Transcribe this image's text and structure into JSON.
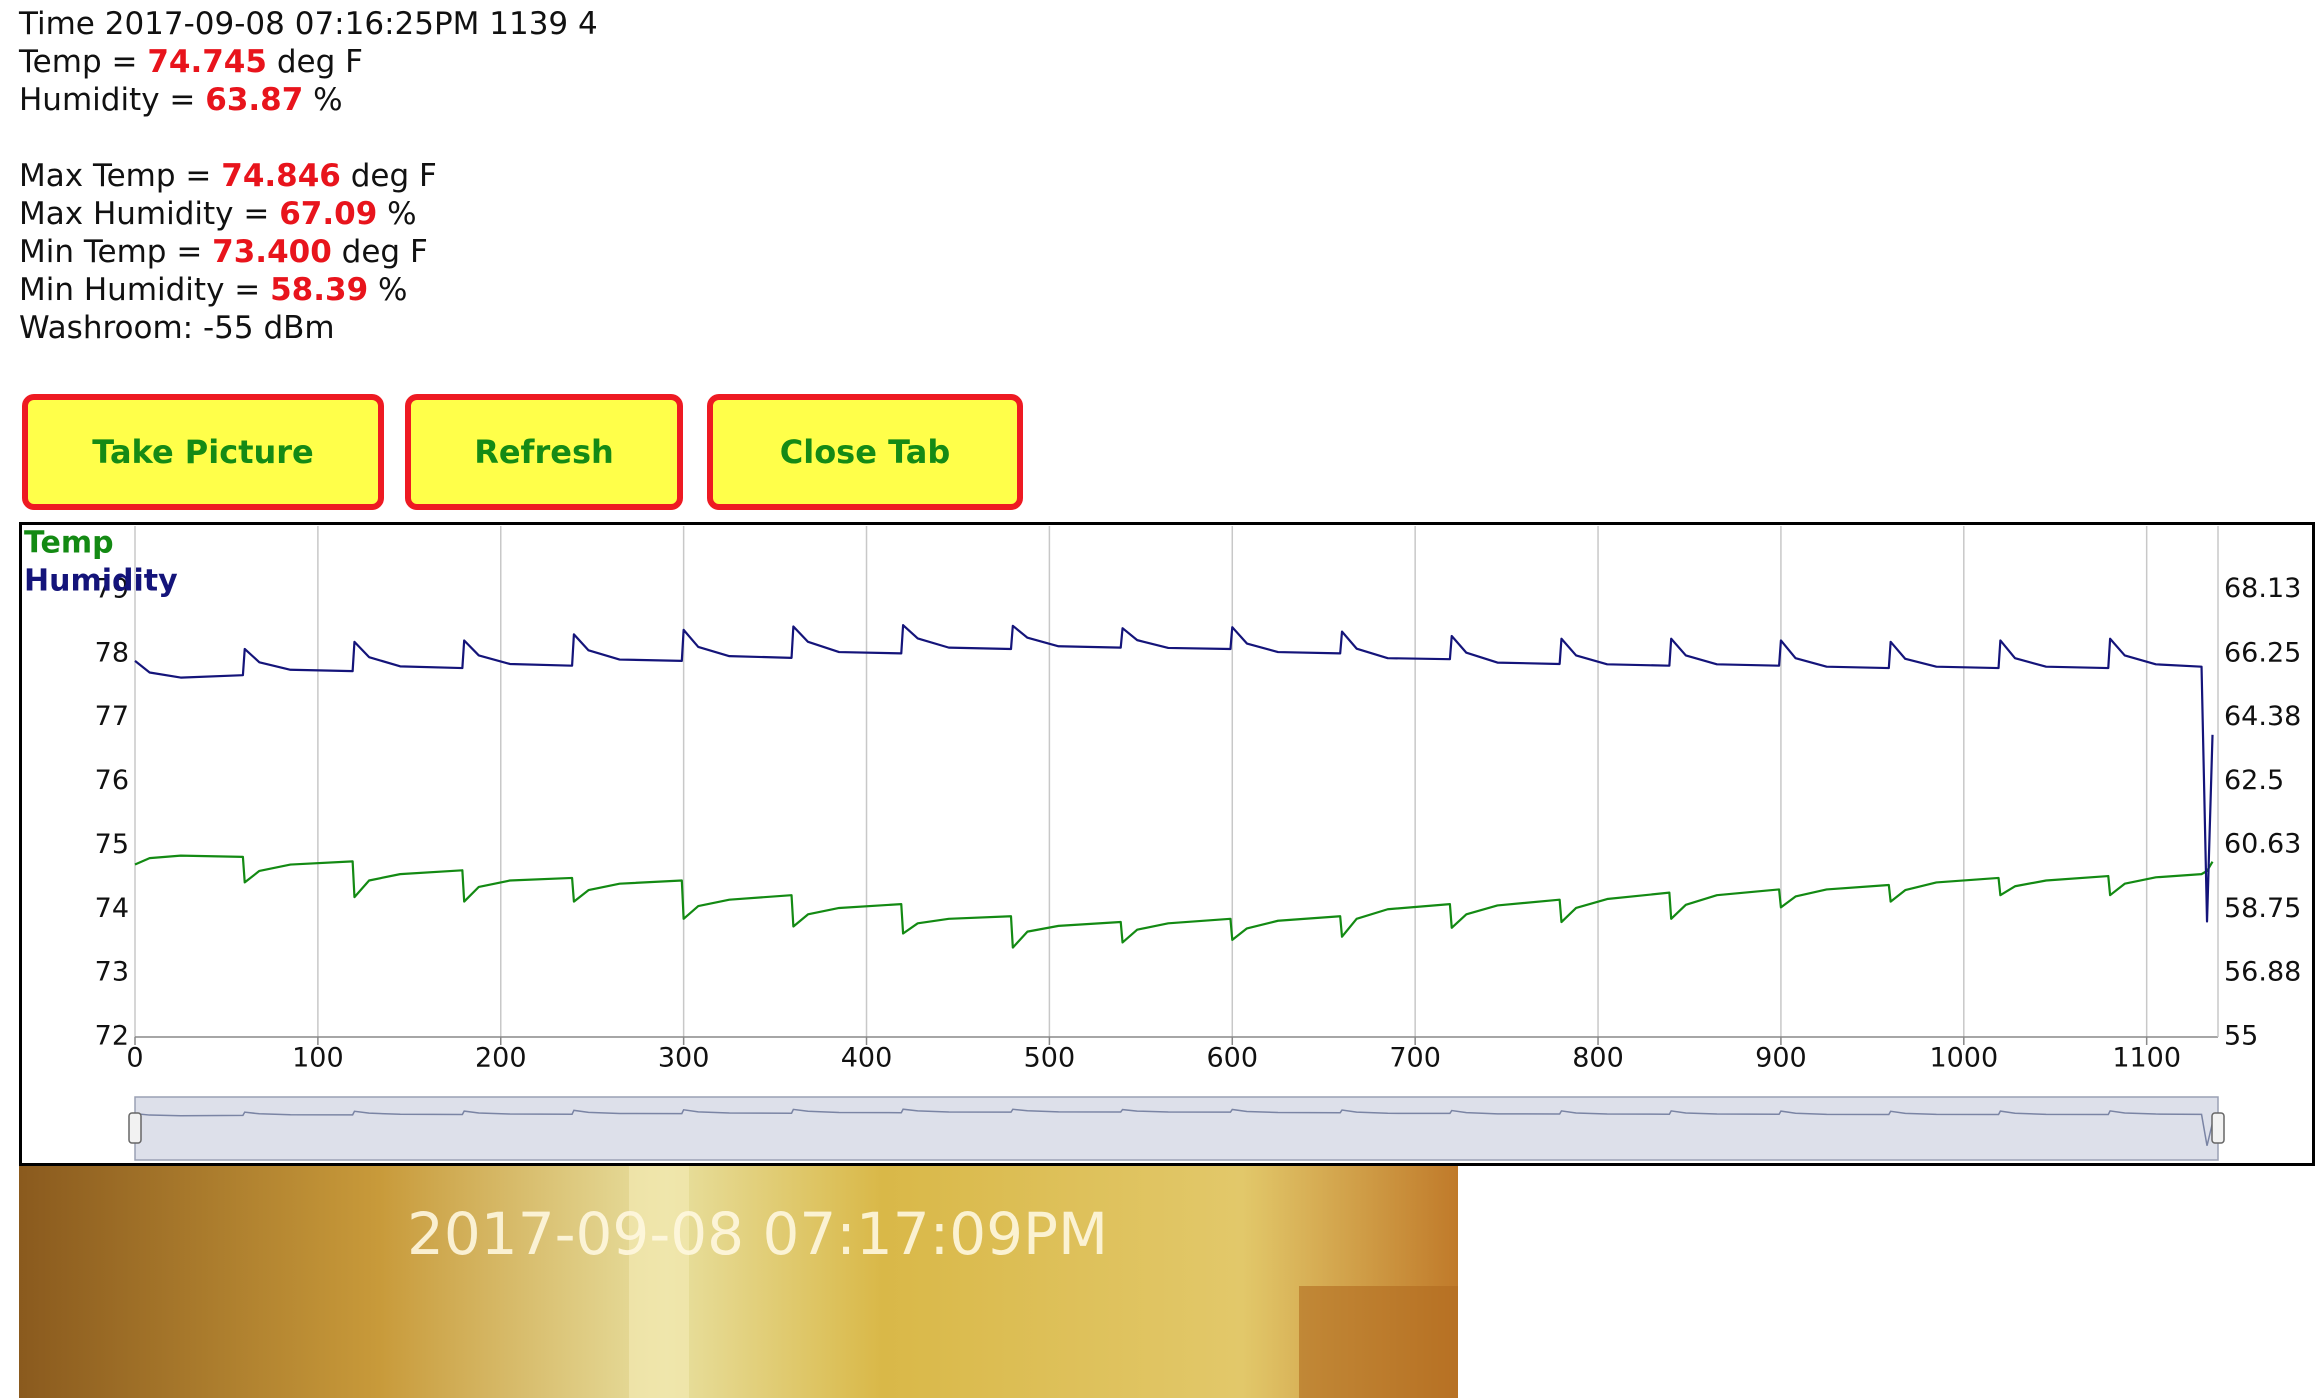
{
  "header": {
    "time": "Time 2017-09-08 07:16:25PM 1139 4",
    "current": [
      {
        "label": "Temp =",
        "value": "74.745",
        "unit": "deg F"
      },
      {
        "label": "Humidity =",
        "value": "63.87",
        "unit": "%"
      }
    ],
    "extremes": [
      {
        "label": "Max Temp =",
        "value": "74.846",
        "unit": "deg F"
      },
      {
        "label": "Max Humidity =",
        "value": "67.09",
        "unit": "%"
      },
      {
        "label": "Min Temp =",
        "value": "73.400",
        "unit": "deg F"
      },
      {
        "label": "Min Humidity =",
        "value": "58.39",
        "unit": "%"
      }
    ],
    "signal": "Washroom: -55 dBm"
  },
  "buttons": [
    "Take Picture",
    "Refresh",
    "Close Tab"
  ],
  "chart_data": {
    "type": "line",
    "legend": "top-left",
    "grid": "x",
    "x": [
      0,
      8,
      25,
      59,
      60,
      68,
      85,
      119,
      120,
      128,
      145,
      179,
      180,
      188,
      205,
      239,
      240,
      248,
      265,
      299,
      300,
      308,
      325,
      359,
      360,
      368,
      385,
      419,
      420,
      428,
      445,
      479,
      480,
      488,
      505,
      539,
      540,
      548,
      565,
      599,
      600,
      608,
      625,
      659,
      660,
      668,
      685,
      719,
      720,
      728,
      745,
      779,
      780,
      788,
      805,
      839,
      840,
      848,
      865,
      899,
      900,
      908,
      925,
      959,
      960,
      968,
      985,
      1019,
      1020,
      1028,
      1045,
      1079,
      1080,
      1088,
      1105,
      1130,
      1133,
      1136
    ],
    "series": [
      {
        "name": "Temp",
        "color": "#138a13",
        "axis": "y",
        "values": [
          74.7,
          74.8,
          74.84,
          74.82,
          74.42,
          74.6,
          74.7,
          74.75,
          74.19,
          74.45,
          74.55,
          74.61,
          74.12,
          74.35,
          74.45,
          74.49,
          74.12,
          74.3,
          74.4,
          74.45,
          73.85,
          74.05,
          74.15,
          74.22,
          73.73,
          73.92,
          74.02,
          74.08,
          73.62,
          73.78,
          73.85,
          73.89,
          73.4,
          73.65,
          73.74,
          73.8,
          73.48,
          73.68,
          73.78,
          73.85,
          73.52,
          73.7,
          73.82,
          73.89,
          73.57,
          73.85,
          74.0,
          74.08,
          73.71,
          73.92,
          74.06,
          74.15,
          73.8,
          74.02,
          74.16,
          74.26,
          73.85,
          74.07,
          74.22,
          74.31,
          74.03,
          74.2,
          74.31,
          74.38,
          74.12,
          74.3,
          74.42,
          74.49,
          74.22,
          74.36,
          74.45,
          74.52,
          74.22,
          74.4,
          74.5,
          74.55,
          74.6,
          74.745
        ]
      },
      {
        "name": "Humidity",
        "color": "#14147a",
        "axis": "y2",
        "values": [
          66.04,
          65.7,
          65.55,
          65.62,
          66.39,
          66.0,
          65.78,
          65.74,
          66.6,
          66.15,
          65.88,
          65.83,
          66.64,
          66.2,
          65.95,
          65.9,
          66.82,
          66.35,
          66.08,
          66.04,
          66.95,
          66.45,
          66.18,
          66.13,
          67.05,
          66.6,
          66.3,
          66.26,
          67.09,
          66.7,
          66.43,
          66.39,
          67.07,
          66.72,
          66.47,
          66.43,
          67.0,
          66.65,
          66.42,
          66.39,
          67.03,
          66.55,
          66.3,
          66.26,
          66.9,
          66.4,
          66.12,
          66.09,
          66.77,
          66.28,
          65.99,
          65.95,
          66.69,
          66.2,
          65.94,
          65.9,
          66.69,
          66.2,
          65.94,
          65.9,
          66.64,
          66.12,
          65.87,
          65.83,
          66.6,
          66.1,
          65.87,
          65.83,
          66.64,
          66.12,
          65.87,
          65.83,
          66.69,
          66.2,
          65.94,
          65.87,
          58.39,
          63.87
        ]
      }
    ],
    "xlim": [
      0,
      1139
    ],
    "xticks": [
      0,
      100,
      200,
      300,
      400,
      500,
      600,
      700,
      800,
      900,
      1000,
      1100
    ],
    "ylim": [
      72,
      80
    ],
    "yticks": [
      72,
      73,
      74,
      75,
      76,
      77,
      78,
      79
    ],
    "y2lim": [
      55,
      70
    ],
    "y2ticks": [
      55,
      56.88,
      58.75,
      60.63,
      62.5,
      64.38,
      66.25,
      68.13
    ]
  },
  "photo": {
    "timestamp": "2017-09-08 07:17:09PM"
  }
}
